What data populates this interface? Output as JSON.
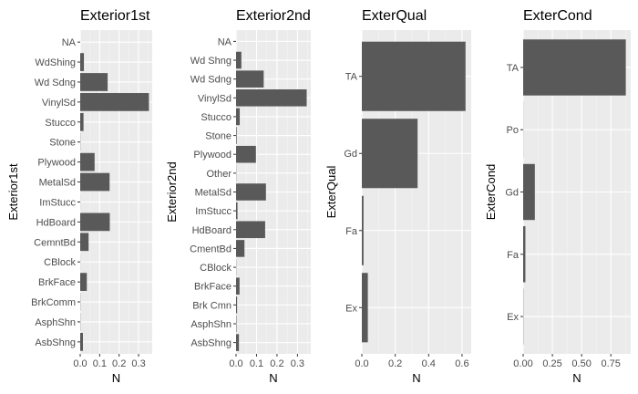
{
  "chart_data": [
    {
      "type": "bar",
      "orientation": "horizontal",
      "title": "Exterior1st",
      "xlabel": "N",
      "ylabel": "Exterior1st",
      "categories": [
        "AsbShng",
        "AsphShn",
        "BrkComm",
        "BrkFace",
        "CBlock",
        "CemntBd",
        "HdBoard",
        "ImStucc",
        "MetalSd",
        "Plywood",
        "Stone",
        "Stucco",
        "VinylSd",
        "Wd Sdng",
        "WdShing",
        "NA"
      ],
      "values": [
        0.014,
        0.001,
        0.001,
        0.034,
        0.0005,
        0.043,
        0.152,
        0.0005,
        0.151,
        0.074,
        0.001,
        0.017,
        0.353,
        0.141,
        0.019,
        0.0
      ],
      "xlim": [
        0,
        0.37
      ],
      "xticks": [
        0.0,
        0.1,
        0.2,
        0.3
      ],
      "xtick_labels": [
        "0.0",
        "0.1",
        "0.2",
        "0.3"
      ],
      "grid": true
    },
    {
      "type": "bar",
      "orientation": "horizontal",
      "title": "Exterior2nd",
      "xlabel": "N",
      "ylabel": "Exterior2nd",
      "categories": [
        "AsbShng",
        "AsphShn",
        "Brk Cmn",
        "BrkFace",
        "CBlock",
        "CmentBd",
        "HdBoard",
        "ImStucc",
        "MetalSd",
        "Other",
        "Plywood",
        "Stone",
        "Stucco",
        "VinylSd",
        "Wd Sdng",
        "Wd Shng",
        "NA"
      ],
      "values": [
        0.014,
        0.002,
        0.005,
        0.017,
        0.001,
        0.041,
        0.142,
        0.007,
        0.146,
        0.001,
        0.097,
        0.003,
        0.018,
        0.345,
        0.135,
        0.026,
        0.0
      ],
      "xlim": [
        0,
        0.365
      ],
      "xticks": [
        0.0,
        0.1,
        0.2,
        0.3
      ],
      "xtick_labels": [
        "0.0",
        "0.1",
        "0.2",
        "0.3"
      ],
      "grid": true
    },
    {
      "type": "bar",
      "orientation": "horizontal",
      "title": "ExterQual",
      "xlabel": "N",
      "ylabel": "ExterQual",
      "categories": [
        "Ex",
        "Fa",
        "Gd",
        "TA"
      ],
      "values": [
        0.036,
        0.01,
        0.334,
        0.621
      ],
      "xlim": [
        0,
        0.655
      ],
      "xticks": [
        0.0,
        0.2,
        0.4,
        0.6
      ],
      "xtick_labels": [
        "0.0",
        "0.2",
        "0.4",
        "0.6"
      ],
      "grid": true
    },
    {
      "type": "bar",
      "orientation": "horizontal",
      "title": "ExterCond",
      "xlabel": "N",
      "ylabel": "ExterCond",
      "categories": [
        "Ex",
        "Fa",
        "Gd",
        "Po",
        "TA"
      ],
      "values": [
        0.002,
        0.019,
        0.1,
        0.001,
        0.878
      ],
      "xlim": [
        0,
        0.92
      ],
      "xticks": [
        0.0,
        0.25,
        0.5,
        0.75
      ],
      "xtick_labels": [
        "0.00",
        "0.25",
        "0.50",
        "0.75"
      ],
      "grid": true
    }
  ]
}
